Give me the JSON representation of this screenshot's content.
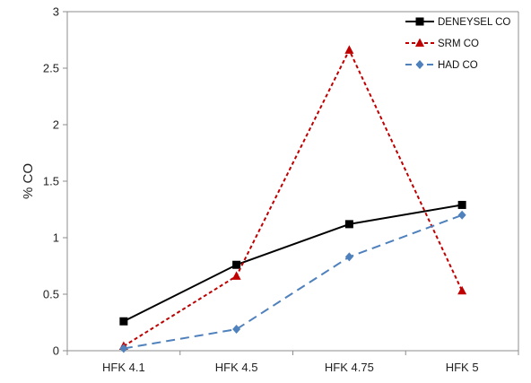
{
  "chart_data": {
    "type": "line",
    "title": "",
    "xlabel": "",
    "ylabel": "% CO",
    "categories": [
      "HFK 4.1",
      "HFK 4.5",
      "HFK 4.75",
      "HFK 5"
    ],
    "ylim": [
      0,
      3
    ],
    "yticks": [
      "0",
      "0.5",
      "1",
      "1.5",
      "2",
      "2.5",
      "3"
    ],
    "grid": false,
    "legend_position": "top-right",
    "series": [
      {
        "name": "DENEYSEL CO",
        "values": [
          0.26,
          0.76,
          1.12,
          1.29
        ],
        "color": "#000000",
        "marker": "square",
        "dash": "solid"
      },
      {
        "name": "SRM CO",
        "values": [
          0.04,
          0.66,
          2.66,
          0.53
        ],
        "color": "#c00000",
        "marker": "triangle",
        "dash": "dotted"
      },
      {
        "name": "HAD CO",
        "values": [
          0.02,
          0.19,
          0.83,
          1.2
        ],
        "color": "#4f81bd",
        "marker": "diamond",
        "dash": "dashed"
      }
    ]
  }
}
